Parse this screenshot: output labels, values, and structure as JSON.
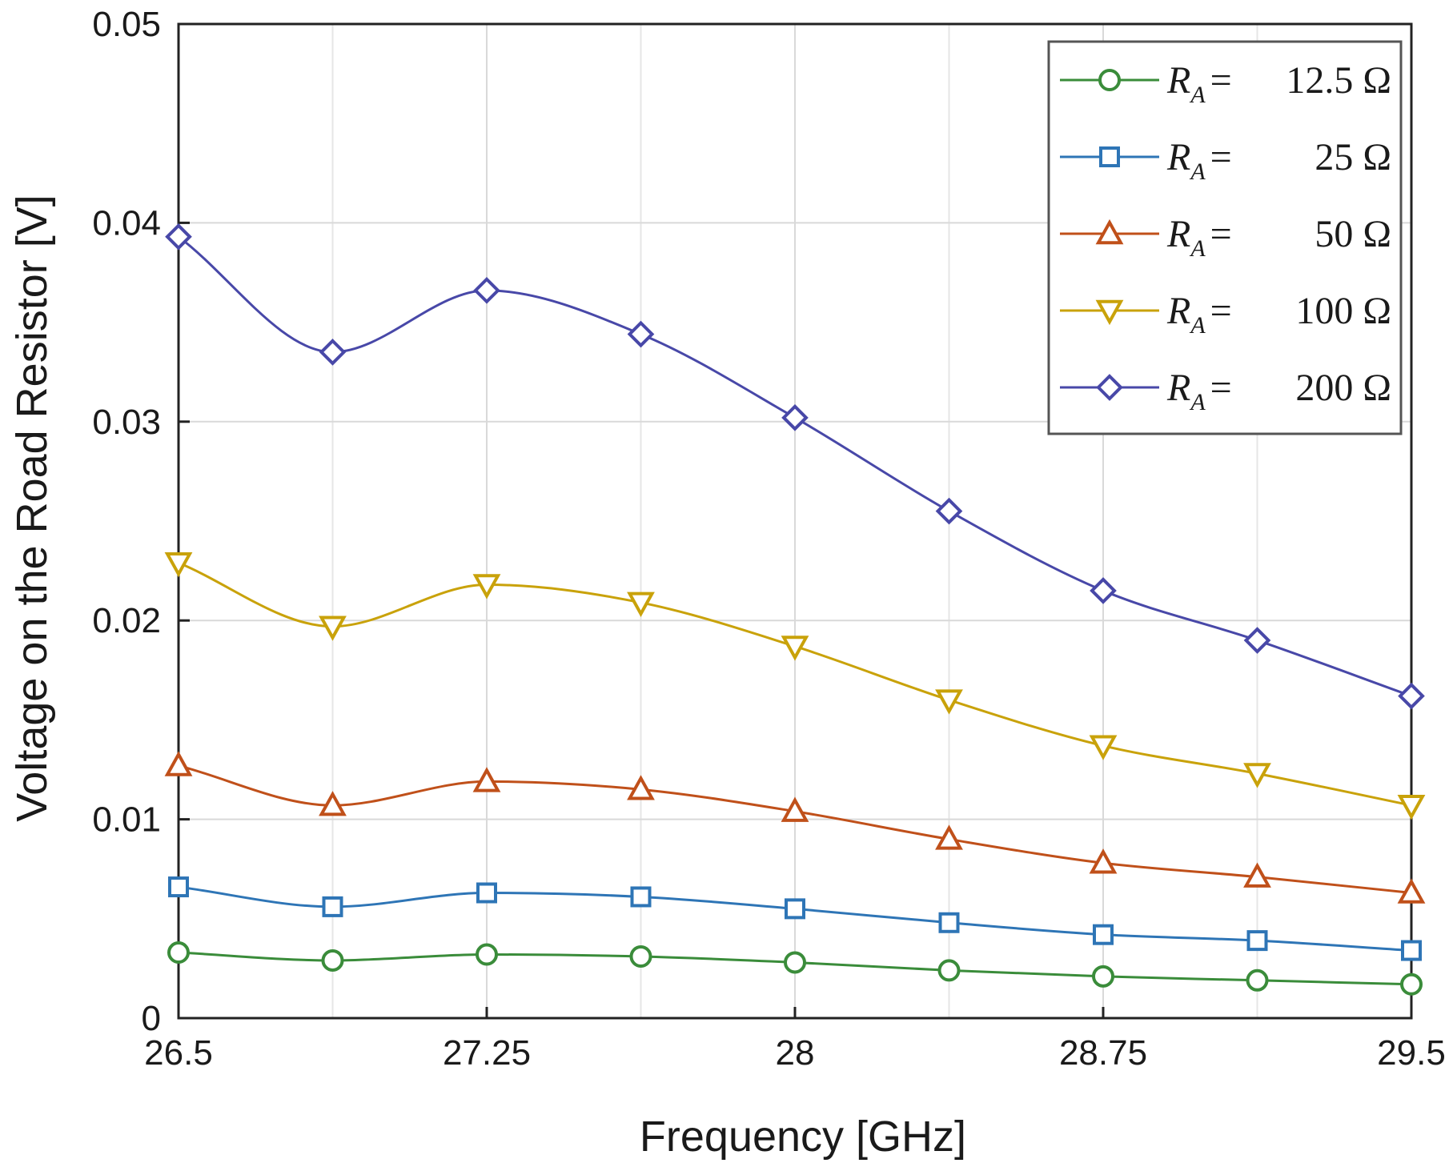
{
  "chart_data": {
    "type": "line",
    "title": "",
    "xlabel": "Frequency [GHz]",
    "ylabel": "Voltage on the Road Resistor [V]",
    "xlim": [
      26.5,
      29.5
    ],
    "ylim": [
      0,
      0.05
    ],
    "xticks": [
      26.5,
      27.25,
      28,
      28.75,
      29.5
    ],
    "xtick_labels": [
      "26.5",
      "27.25",
      "28",
      "28.75",
      "29.5"
    ],
    "yticks": [
      0,
      0.01,
      0.02,
      0.03,
      0.04,
      0.05
    ],
    "ytick_labels": [
      "0",
      "0.01",
      "0.02",
      "0.03",
      "0.04",
      "0.05"
    ],
    "grid": true,
    "legend_position": "top-right",
    "x": [
      26.5,
      26.875,
      27.25,
      27.625,
      28,
      28.375,
      28.75,
      29.125,
      29.5
    ],
    "series": [
      {
        "name": "R_A = 12.5 Ω",
        "legend": {
          "symbol": "R",
          "sub": "A",
          "eq": "=",
          "value": "12.5 Ω"
        },
        "color": "#3a8c3a",
        "marker": "circle",
        "values": [
          0.0033,
          0.0029,
          0.0032,
          0.0031,
          0.0028,
          0.0024,
          0.0021,
          0.0019,
          0.0017
        ]
      },
      {
        "name": "R_A = 25 Ω",
        "legend": {
          "symbol": "R",
          "sub": "A",
          "eq": "=",
          "value": "25 Ω"
        },
        "color": "#2e75b6",
        "marker": "square",
        "values": [
          0.0066,
          0.0056,
          0.0063,
          0.0061,
          0.0055,
          0.0048,
          0.0042,
          0.0039,
          0.0034
        ]
      },
      {
        "name": "R_A = 50 Ω",
        "legend": {
          "symbol": "R",
          "sub": "A",
          "eq": "=",
          "value": "50 Ω"
        },
        "color": "#c0501a",
        "marker": "triangle-up",
        "values": [
          0.0127,
          0.0107,
          0.0119,
          0.0115,
          0.0104,
          0.009,
          0.0078,
          0.0071,
          0.0063
        ]
      },
      {
        "name": "R_A = 100 Ω",
        "legend": {
          "symbol": "R",
          "sub": "A",
          "eq": "=",
          "value": "100 Ω"
        },
        "color": "#c9a20a",
        "marker": "triangle-down",
        "values": [
          0.0229,
          0.0197,
          0.0218,
          0.0209,
          0.0187,
          0.016,
          0.0137,
          0.0123,
          0.0107
        ]
      },
      {
        "name": "R_A = 200 Ω",
        "legend": {
          "symbol": "R",
          "sub": "A",
          "eq": "=",
          "value": "200 Ω"
        },
        "color": "#4848a8",
        "marker": "diamond",
        "values": [
          0.0393,
          0.0335,
          0.0366,
          0.0344,
          0.0302,
          0.0255,
          0.0215,
          0.019,
          0.0162
        ]
      }
    ]
  }
}
